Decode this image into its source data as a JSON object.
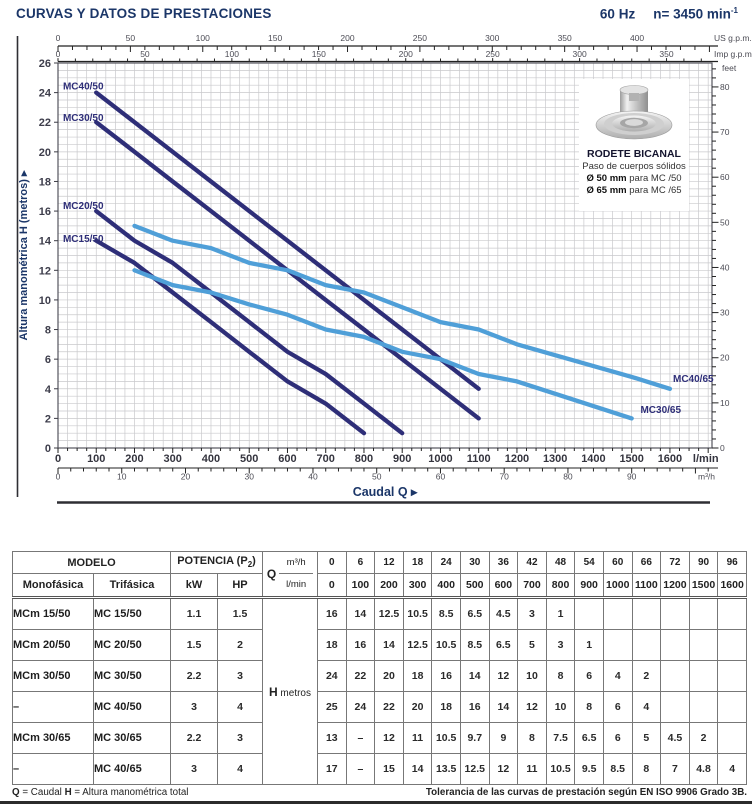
{
  "header": {
    "title": "CURVAS Y DATOS DE PRESTACIONES",
    "frequency": "60 Hz",
    "speed": "n= 3450 min",
    "speed_exponent": "-1"
  },
  "chart_data": {
    "type": "line",
    "x_title": "Caudal Q",
    "x_title_arrow": "▸",
    "axes": {
      "y": {
        "title": "Altura manométrica H (metros)",
        "arrow": "▸",
        "min": 0,
        "max": 26,
        "label_step": 2,
        "minor_step": 0.5
      },
      "x_lmin": {
        "unit": "l/min",
        "min": 0,
        "max": 1710,
        "label_step": 100,
        "labels_to": 1600,
        "minor_step": 25
      },
      "x_m3h": {
        "unit": "m³/h",
        "label_step": 10,
        "labels_to": 90,
        "minor_step": 2,
        "lmin_per_unit": 16.6667
      },
      "x_usgpm": {
        "unit": "US g.p.m.",
        "label_step": 50,
        "labels_to": 400,
        "minor_step": 10,
        "lmin_per_unit": 3.785
      },
      "x_impgpm": {
        "unit": "Imp g.p.m.",
        "label_step": 50,
        "labels_to": 350,
        "minor_step": 10,
        "lmin_per_unit": 4.546
      },
      "y_feet": {
        "unit": "feet",
        "label_step": 10,
        "labels_to": 80,
        "minor_step": 2,
        "m_per_unit": 0.3048
      }
    },
    "colors": {
      "dark": "#2E2E78",
      "light": "#4F9FD8",
      "grid": "#C9C9CC",
      "axis": "#3C3C46",
      "title_navy": "#1B3668",
      "tick_label": "#4C4C55"
    },
    "series": [
      {
        "name": "MC40/50",
        "color_key": "dark",
        "label_color_key": "dark",
        "label_q": 13,
        "label_h": 24.2,
        "points": [
          [
            100,
            24
          ],
          [
            200,
            22
          ],
          [
            300,
            20
          ],
          [
            400,
            18
          ],
          [
            500,
            16
          ],
          [
            600,
            14
          ],
          [
            700,
            12
          ],
          [
            800,
            10
          ],
          [
            900,
            8
          ],
          [
            1000,
            6
          ],
          [
            1100,
            4
          ]
        ]
      },
      {
        "name": "MC30/50",
        "color_key": "dark",
        "label_color_key": "dark",
        "label_q": 13,
        "label_h": 22.1,
        "points": [
          [
            100,
            22
          ],
          [
            200,
            20
          ],
          [
            300,
            18
          ],
          [
            400,
            16
          ],
          [
            500,
            14
          ],
          [
            600,
            12
          ],
          [
            700,
            10
          ],
          [
            800,
            8
          ],
          [
            900,
            6
          ],
          [
            1000,
            4
          ],
          [
            1100,
            2
          ]
        ]
      },
      {
        "name": "MC20/50",
        "color_key": "dark",
        "label_color_key": "dark",
        "label_q": 13,
        "label_h": 16.15,
        "points": [
          [
            100,
            16
          ],
          [
            200,
            14
          ],
          [
            300,
            12.5
          ],
          [
            400,
            10.5
          ],
          [
            500,
            8.5
          ],
          [
            600,
            6.5
          ],
          [
            700,
            5
          ],
          [
            800,
            3
          ],
          [
            900,
            1
          ]
        ]
      },
      {
        "name": "MC15/50",
        "color_key": "dark",
        "label_color_key": "dark",
        "label_q": 13,
        "label_h": 13.9,
        "points": [
          [
            100,
            14
          ],
          [
            200,
            12.5
          ],
          [
            300,
            10.5
          ],
          [
            400,
            8.5
          ],
          [
            500,
            6.5
          ],
          [
            600,
            4.5
          ],
          [
            700,
            3
          ],
          [
            800,
            1
          ]
        ]
      },
      {
        "name": "MC40/65",
        "color_key": "light",
        "label_color_key": "dark",
        "label_q": 1608,
        "label_h": 4.45,
        "points": [
          [
            200,
            15
          ],
          [
            300,
            14
          ],
          [
            400,
            13.5
          ],
          [
            500,
            12.5
          ],
          [
            600,
            12
          ],
          [
            700,
            11
          ],
          [
            800,
            10.5
          ],
          [
            900,
            9.5
          ],
          [
            1000,
            8.5
          ],
          [
            1100,
            8
          ],
          [
            1200,
            7
          ],
          [
            1500,
            4.8
          ],
          [
            1600,
            4
          ]
        ]
      },
      {
        "name": "MC30/65",
        "color_key": "light",
        "label_color_key": "dark",
        "label_q": 1523,
        "label_h": 2.35,
        "points": [
          [
            200,
            12
          ],
          [
            300,
            11
          ],
          [
            400,
            10.5
          ],
          [
            500,
            9.7
          ],
          [
            600,
            9
          ],
          [
            700,
            8
          ],
          [
            800,
            7.5
          ],
          [
            900,
            6.5
          ],
          [
            1000,
            6
          ],
          [
            1100,
            5
          ],
          [
            1200,
            4.5
          ],
          [
            1500,
            2
          ]
        ]
      }
    ]
  },
  "impeller": {
    "title": "RODETE BICANAL",
    "subtitle": "Paso de cuerpos sólidos",
    "spec1_bold": "Ø 50 mm",
    "spec1_rest": " para MC /50",
    "spec2_bold": "Ø 65 mm",
    "spec2_rest": " para MC /65"
  },
  "table": {
    "headers": {
      "modelo": "MODELO",
      "monofasica": "Monofásica",
      "trifasica": "Trifásica",
      "potencia_prefix": "POTENCIA (P",
      "potencia_sub": "2",
      "potencia_suffix": ")",
      "kw": "kW",
      "hp": "HP",
      "q": "Q",
      "m3h": "m³/h",
      "lmin": "l/min",
      "h": "H",
      "h_unit": "metros"
    },
    "q_m3h": [
      "0",
      "6",
      "12",
      "18",
      "24",
      "30",
      "36",
      "42",
      "48",
      "54",
      "60",
      "66",
      "72",
      "90",
      "96"
    ],
    "q_lmin": [
      "0",
      "100",
      "200",
      "300",
      "400",
      "500",
      "600",
      "700",
      "800",
      "900",
      "1000",
      "1100",
      "1200",
      "1500",
      "1600"
    ],
    "rows": [
      {
        "mono": "MCm 15/50",
        "tri": "MC 15/50",
        "kw": "1.1",
        "hp": "1.5",
        "h": [
          "16",
          "14",
          "12.5",
          "10.5",
          "8.5",
          "6.5",
          "4.5",
          "3",
          "1",
          "",
          "",
          "",
          "",
          "",
          ""
        ]
      },
      {
        "mono": "MCm 20/50",
        "tri": "MC 20/50",
        "kw": "1.5",
        "hp": "2",
        "h": [
          "18",
          "16",
          "14",
          "12.5",
          "10.5",
          "8.5",
          "6.5",
          "5",
          "3",
          "1",
          "",
          "",
          "",
          "",
          ""
        ]
      },
      {
        "mono": "MCm 30/50",
        "tri": "MC 30/50",
        "kw": "2.2",
        "hp": "3",
        "h": [
          "24",
          "22",
          "20",
          "18",
          "16",
          "14",
          "12",
          "10",
          "8",
          "6",
          "4",
          "2",
          "",
          "",
          ""
        ]
      },
      {
        "mono": "–",
        "tri": "MC 40/50",
        "kw": "3",
        "hp": "4",
        "h": [
          "25",
          "24",
          "22",
          "20",
          "18",
          "16",
          "14",
          "12",
          "10",
          "8",
          "6",
          "4",
          "",
          "",
          ""
        ]
      },
      {
        "mono": "MCm 30/65",
        "tri": "MC 30/65",
        "kw": "2.2",
        "hp": "3",
        "h": [
          "13",
          "–",
          "12",
          "11",
          "10.5",
          "9.7",
          "9",
          "8",
          "7.5",
          "6.5",
          "6",
          "5",
          "4.5",
          "2",
          ""
        ]
      },
      {
        "mono": "–",
        "tri": "MC 40/65",
        "kw": "3",
        "hp": "4",
        "h": [
          "17",
          "–",
          "15",
          "14",
          "13.5",
          "12.5",
          "12",
          "11",
          "10.5",
          "9.5",
          "8.5",
          "8",
          "7",
          "4.8",
          "4"
        ]
      }
    ]
  },
  "footnotes": {
    "left_q_bold": "Q",
    "left_q_rest": " = Caudal   ",
    "left_h_bold": "H",
    "left_h_rest": " = Altura manométrica total",
    "right": "Tolerancia de las curvas de prestación según EN ISO 9906 Grado 3B."
  }
}
